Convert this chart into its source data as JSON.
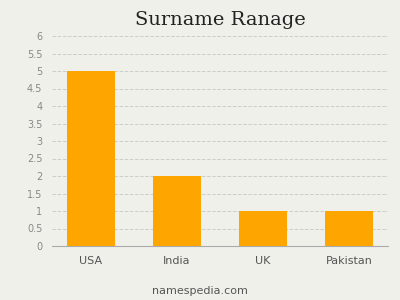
{
  "title": "Surname Ranage",
  "categories": [
    "USA",
    "India",
    "UK",
    "Pakistan"
  ],
  "values": [
    5,
    2,
    1,
    1
  ],
  "bar_color": "#FFA500",
  "ylim": [
    0,
    6
  ],
  "yticks": [
    0,
    0.5,
    1,
    1.5,
    2,
    2.5,
    3,
    3.5,
    4,
    4.5,
    5,
    5.5,
    6
  ],
  "grid_color": "#cccccc",
  "background_color": "#f0f0eb",
  "title_fontsize": 14,
  "tick_fontsize": 7,
  "xlabel_fontsize": 8,
  "footer_text": "namespedia.com",
  "footer_fontsize": 8
}
